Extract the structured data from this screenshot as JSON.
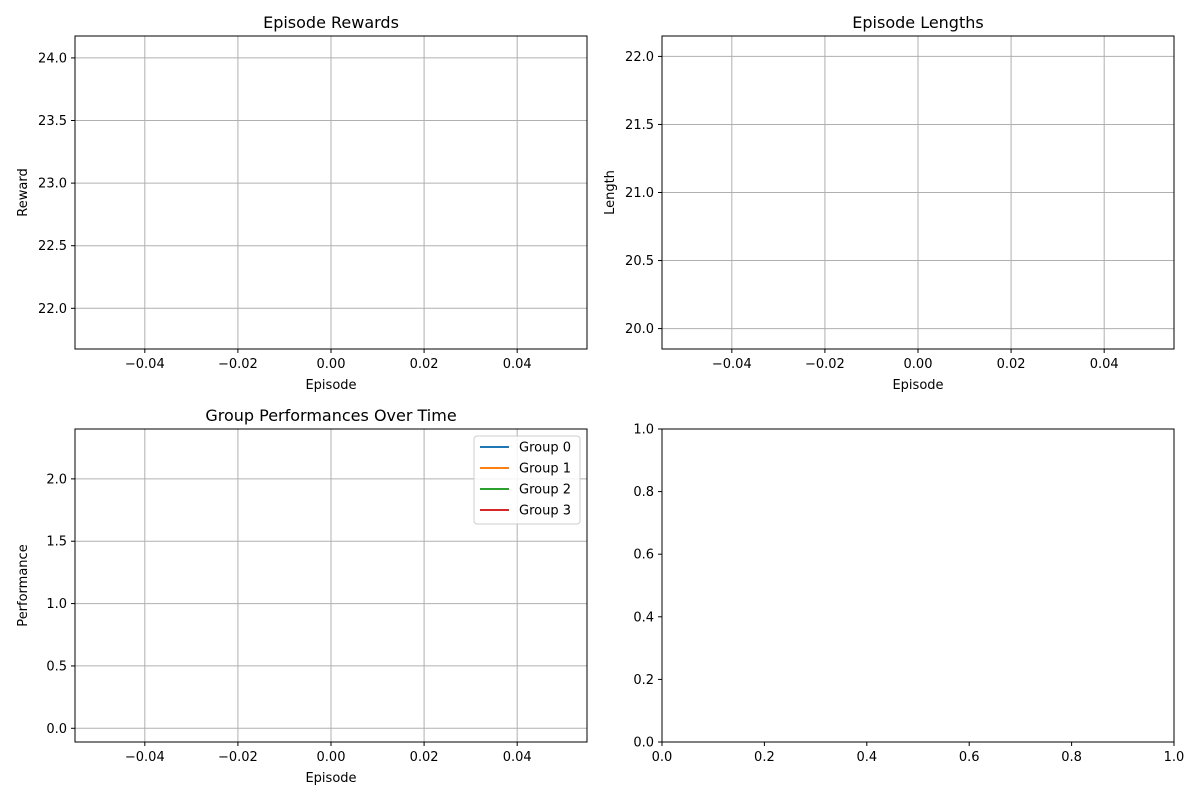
{
  "chart_data": [
    {
      "type": "line",
      "title": "Episode Rewards",
      "xlabel": "Episode",
      "ylabel": "Reward",
      "xlim": [
        -0.055,
        0.055
      ],
      "ylim": [
        21.675,
        24.175
      ],
      "xticks": [
        -0.04,
        -0.02,
        0.0,
        0.02,
        0.04
      ],
      "xtick_labels": [
        "−0.04",
        "−0.02",
        "0.00",
        "0.02",
        "0.04"
      ],
      "yticks": [
        22.0,
        22.5,
        23.0,
        23.5,
        24.0
      ],
      "ytick_labels": [
        "22.0",
        "22.5",
        "23.0",
        "23.5",
        "24.0"
      ],
      "grid": true,
      "series": []
    },
    {
      "type": "line",
      "title": "Episode Lengths",
      "xlabel": "Episode",
      "ylabel": "Length",
      "xlim": [
        -0.055,
        0.055
      ],
      "ylim": [
        19.85,
        22.15
      ],
      "xticks": [
        -0.04,
        -0.02,
        0.0,
        0.02,
        0.04
      ],
      "xtick_labels": [
        "−0.04",
        "−0.02",
        "0.00",
        "0.02",
        "0.04"
      ],
      "yticks": [
        20.0,
        20.5,
        21.0,
        21.5,
        22.0
      ],
      "ytick_labels": [
        "20.0",
        "20.5",
        "21.0",
        "21.5",
        "22.0"
      ],
      "grid": true,
      "series": []
    },
    {
      "type": "line",
      "title": "Group Performances Over Time",
      "xlabel": "Episode",
      "ylabel": "Performance",
      "xlim": [
        -0.055,
        0.055
      ],
      "ylim": [
        -0.11,
        2.4
      ],
      "xticks": [
        -0.04,
        -0.02,
        0.0,
        0.02,
        0.04
      ],
      "xtick_labels": [
        "−0.04",
        "−0.02",
        "0.00",
        "0.02",
        "0.04"
      ],
      "yticks": [
        0.0,
        0.5,
        1.0,
        1.5,
        2.0
      ],
      "ytick_labels": [
        "0.0",
        "0.5",
        "1.0",
        "1.5",
        "2.0"
      ],
      "grid": true,
      "legend": "top-right",
      "series": [
        {
          "name": "Group 0",
          "color": "#1f77b4",
          "x": [],
          "values": []
        },
        {
          "name": "Group 1",
          "color": "#ff7f0e",
          "x": [],
          "values": []
        },
        {
          "name": "Group 2",
          "color": "#2ca02c",
          "x": [],
          "values": []
        },
        {
          "name": "Group 3",
          "color": "#d62728",
          "x": [],
          "values": []
        }
      ]
    },
    {
      "type": "line",
      "title": "",
      "xlabel": "",
      "ylabel": "",
      "xlim": [
        0,
        1
      ],
      "ylim": [
        0,
        1
      ],
      "xticks": [
        0.0,
        0.2,
        0.4,
        0.6,
        0.8,
        1.0
      ],
      "xtick_labels": [
        "0.0",
        "0.2",
        "0.4",
        "0.6",
        "0.8",
        "1.0"
      ],
      "yticks": [
        0.0,
        0.2,
        0.4,
        0.6,
        0.8,
        1.0
      ],
      "ytick_labels": [
        "0.0",
        "0.2",
        "0.4",
        "0.6",
        "0.8",
        "1.0"
      ],
      "grid": false,
      "series": []
    }
  ]
}
